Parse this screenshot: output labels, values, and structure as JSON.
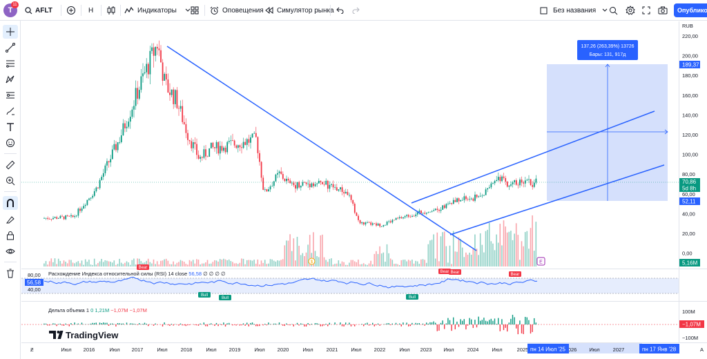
{
  "header": {
    "avatar_letter": "T",
    "notification_count": "11",
    "symbol": "AFLT",
    "interval": "H",
    "indicators_label": "Индикаторы",
    "alerts_label": "Оповещения",
    "replay_label": "Симулятор рынка",
    "layout_name": "Без названия",
    "publish_label": "Опубликовать"
  },
  "price_axis": {
    "currency": "RUB",
    "ticks": [
      "220,00",
      "200,00",
      "180,00",
      "160,00",
      "140,00",
      "120,00",
      "100,00",
      "80,00",
      "60,00",
      "40,00",
      "20,00",
      "0,00"
    ],
    "range_top_label": "189,37",
    "last_price_label": "70,86",
    "countdown_label": "5d 8h",
    "range_bottom_label": "52,11",
    "volume_label": "5,16M"
  },
  "time_axis": {
    "ticks": [
      "Июл",
      "2016",
      "Июл",
      "2017",
      "Июл",
      "2018",
      "Июл",
      "2019",
      "Июл",
      "2020",
      "Июл",
      "2021",
      "Июл",
      "2022",
      "Июл",
      "2023",
      "Июл",
      "2024",
      "Июл",
      "2025",
      "2026",
      "Июл",
      "2027"
    ],
    "cursor_left_label": "пн 14 Июл '25",
    "cursor_right_label": "пн 17 Янв '28",
    "auto_label": "A"
  },
  "measure_tooltip": {
    "line1": "137,26 (263,39%) 13726",
    "line2": "Бары: 131, 917д"
  },
  "rsi_pane": {
    "title": "Расхождение Индекса относительной силы (RSI)",
    "params": "14 close",
    "value": "56,58",
    "extra": "∅ ∅ ∅ ∅",
    "axis_80": "80,00",
    "axis_40": "40,00",
    "value_label": "56,58",
    "labels": [
      "Bull",
      "Bull",
      "Bull",
      "Bear",
      "Bear",
      "Bear",
      "Bear"
    ]
  },
  "delta_pane": {
    "title": "Дельта объема",
    "param": "1",
    "v0": "0",
    "v1": "1,21M",
    "v2": "−1,07M",
    "v3": "−1,07M",
    "axis_top": "100M",
    "axis_bottom": "−100M",
    "value_label": "−1,07M"
  },
  "brand": {
    "name": "TradingView"
  },
  "colors": {
    "accent": "#2962ff",
    "up": "#089981",
    "down": "#f23645",
    "rsi": "#2962ff",
    "range_fill": "#c7d6fb"
  },
  "icons": [
    "crosshair-icon",
    "trend-line-icon",
    "fib-icon",
    "pattern-icon",
    "prediction-icon",
    "brush-icon",
    "text-icon",
    "emoji-icon",
    "ruler-icon",
    "zoom-icon",
    "magnet-icon",
    "lock-drawing-icon",
    "lock-icon",
    "eye-icon",
    "trash-icon"
  ],
  "chart_data": {
    "type": "candlestick",
    "x_range": [
      "2015-05",
      "2027-12"
    ],
    "y_range": [
      0,
      220
    ],
    "series_close_approx": [
      {
        "t": "2015-05",
        "close": 35
      },
      {
        "t": "2016-01",
        "close": 36
      },
      {
        "t": "2016-07",
        "close": 65
      },
      {
        "t": "2017-01",
        "close": 115
      },
      {
        "t": "2017-07",
        "close": 175
      },
      {
        "t": "2017-11",
        "close": 212
      },
      {
        "t": "2018-01",
        "close": 170
      },
      {
        "t": "2018-04",
        "close": 155
      },
      {
        "t": "2018-07",
        "close": 120
      },
      {
        "t": "2018-10",
        "close": 95
      },
      {
        "t": "2019-01",
        "close": 105
      },
      {
        "t": "2019-07",
        "close": 110
      },
      {
        "t": "2020-01",
        "close": 115
      },
      {
        "t": "2020-03",
        "close": 60
      },
      {
        "t": "2020-07",
        "close": 80
      },
      {
        "t": "2020-10",
        "close": 68
      },
      {
        "t": "2021-01",
        "close": 70
      },
      {
        "t": "2021-07",
        "close": 70
      },
      {
        "t": "2022-01",
        "close": 60
      },
      {
        "t": "2022-04",
        "close": 30
      },
      {
        "t": "2022-10",
        "close": 28
      },
      {
        "t": "2023-01",
        "close": 33
      },
      {
        "t": "2023-07",
        "close": 40
      },
      {
        "t": "2024-01",
        "close": 45
      },
      {
        "t": "2024-07",
        "close": 55
      },
      {
        "t": "2024-10",
        "close": 55
      },
      {
        "t": "2025-01",
        "close": 60
      },
      {
        "t": "2025-04",
        "close": 75
      },
      {
        "t": "2025-07",
        "close": 70.86
      }
    ]
  }
}
